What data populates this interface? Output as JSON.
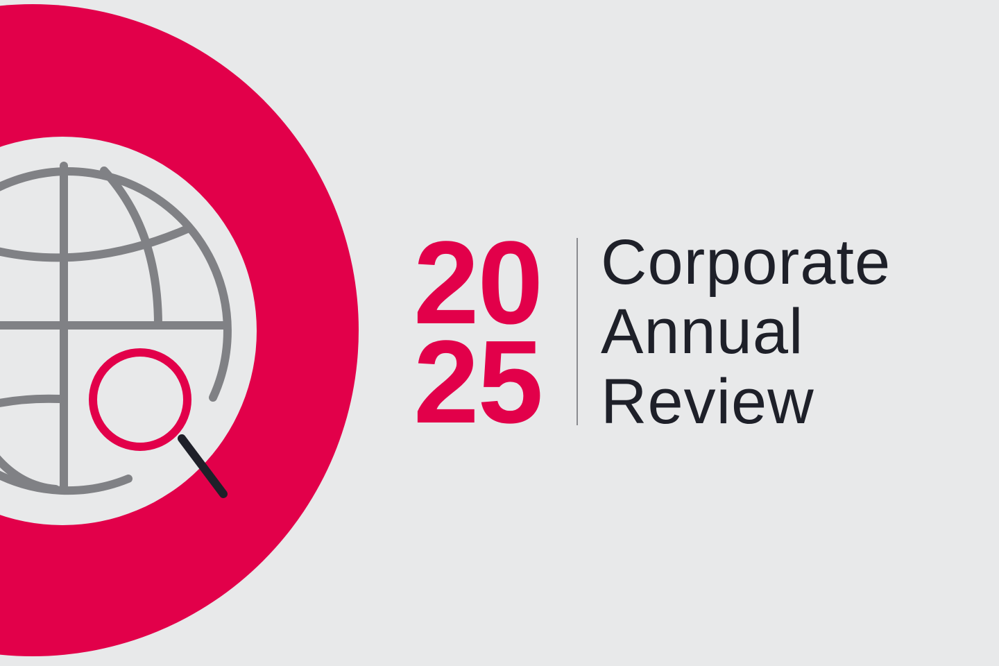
{
  "year": {
    "line1": "20",
    "line2": "25"
  },
  "title": {
    "line1": "Corporate",
    "line2": "Annual",
    "line3": "Review"
  },
  "colors": {
    "accent": "#e2004a",
    "background": "#e8e9ea",
    "text": "#1e2029",
    "icon_gray": "#808185"
  },
  "icons": [
    "globe-icon",
    "magnifier-icon"
  ]
}
